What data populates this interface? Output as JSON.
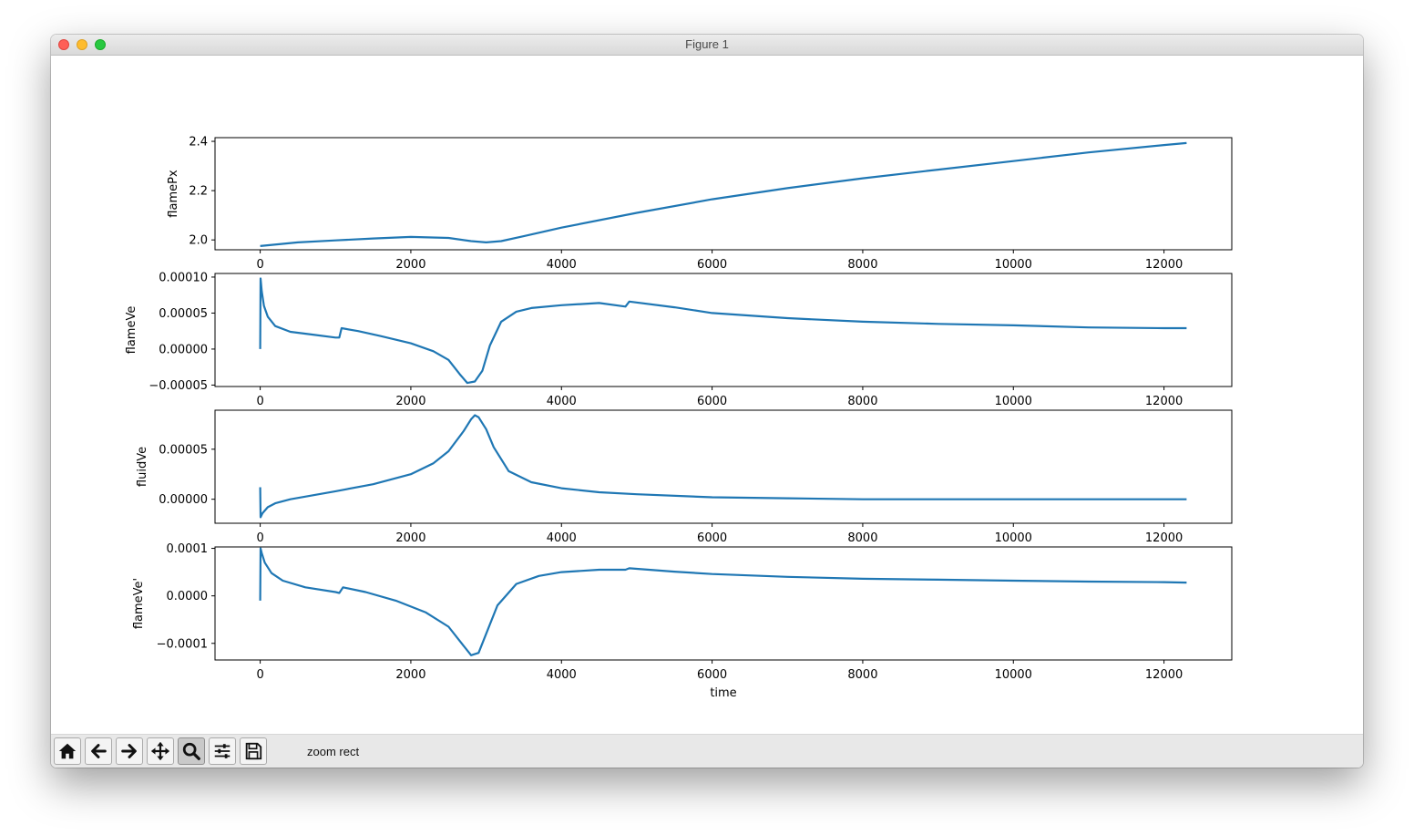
{
  "window": {
    "title": "Figure 1"
  },
  "toolbar": {
    "buttons": [
      {
        "icon": "home-icon",
        "label": "Home"
      },
      {
        "icon": "back-arrow-icon",
        "label": "Back"
      },
      {
        "icon": "forward-arrow-icon",
        "label": "Forward"
      },
      {
        "icon": "pan-move-icon",
        "label": "Pan"
      },
      {
        "icon": "zoom-magnifier-icon",
        "label": "Zoom",
        "active": true
      },
      {
        "icon": "subplots-sliders-icon",
        "label": "Configure subplots"
      },
      {
        "icon": "save-disk-icon",
        "label": "Save"
      }
    ],
    "status": "zoom rect"
  },
  "colors": {
    "line": "#1f77b4",
    "toolbar_bg": "#e8e8e8"
  },
  "chart_data": [
    {
      "type": "line",
      "ylabel": "flamePx",
      "xlabel": "",
      "xlim": [
        -600,
        12900
      ],
      "ylim": [
        1.96,
        2.415
      ],
      "xticks": [
        "0",
        "2000",
        "4000",
        "6000",
        "8000",
        "10000",
        "12000"
      ],
      "yticks": [
        "2.0",
        "2.2",
        "2.4"
      ],
      "ytick_values": [
        2.0,
        2.2,
        2.4
      ],
      "series": [
        {
          "x": [
            0,
            500,
            1000,
            1500,
            2000,
            2500,
            2800,
            3000,
            3200,
            3500,
            4000,
            5000,
            6000,
            7000,
            8000,
            9000,
            10000,
            11000,
            12000,
            12300
          ],
          "y": [
            1.975,
            1.99,
            1.998,
            2.006,
            2.012,
            2.008,
            1.995,
            1.99,
            1.995,
            2.015,
            2.05,
            2.11,
            2.165,
            2.21,
            2.25,
            2.285,
            2.32,
            2.355,
            2.385,
            2.393
          ]
        }
      ]
    },
    {
      "type": "line",
      "ylabel": "flameVe",
      "xlabel": "",
      "xlim": [
        -600,
        12900
      ],
      "ylim": [
        -5.2e-05,
        0.000105
      ],
      "xticks": [
        "0",
        "2000",
        "4000",
        "6000",
        "8000",
        "10000",
        "12000"
      ],
      "yticks": [
        "0.00010",
        "0.00005",
        "0.00000",
        "−0.00005"
      ],
      "ytick_values": [
        0.0001,
        5e-05,
        0.0,
        -5e-05
      ],
      "series": [
        {
          "x": [
            0,
            5,
            20,
            50,
            100,
            200,
            400,
            700,
            1000,
            1050,
            1080,
            1300,
            1600,
            2000,
            2300,
            2500,
            2650,
            2750,
            2850,
            2950,
            3050,
            3200,
            3400,
            3600,
            4000,
            4500,
            4850,
            4900,
            5500,
            6000,
            7000,
            8000,
            9000,
            10000,
            11000,
            12000,
            12300
          ],
          "y": [
            0.0,
            9.8e-05,
            8e-05,
            6e-05,
            4.5e-05,
            3.2e-05,
            2.4e-05,
            2e-05,
            1.6e-05,
            1.6e-05,
            2.9e-05,
            2.5e-05,
            1.8e-05,
            8e-06,
            -3e-06,
            -1.5e-05,
            -3.5e-05,
            -4.7e-05,
            -4.5e-05,
            -3e-05,
            5e-06,
            3.8e-05,
            5.2e-05,
            5.7e-05,
            6.1e-05,
            6.4e-05,
            5.9e-05,
            6.6e-05,
            5.8e-05,
            5e-05,
            4.3e-05,
            3.8e-05,
            3.5e-05,
            3.3e-05,
            3e-05,
            2.9e-05,
            2.9e-05
          ]
        }
      ]
    },
    {
      "type": "line",
      "ylabel": "fluidVe",
      "xlabel": "",
      "xlim": [
        -600,
        12900
      ],
      "ylim": [
        -2.4e-05,
        8.9e-05
      ],
      "xticks": [
        "0",
        "2000",
        "4000",
        "6000",
        "8000",
        "10000",
        "12000"
      ],
      "yticks": [
        "0.00005",
        "0.00000"
      ],
      "ytick_values": [
        5e-05,
        0.0
      ],
      "series": [
        {
          "x": [
            0,
            5,
            30,
            100,
            200,
            400,
            700,
            1000,
            1500,
            2000,
            2300,
            2500,
            2700,
            2800,
            2850,
            2900,
            3000,
            3100,
            3300,
            3600,
            4000,
            4500,
            5000,
            6000,
            7000,
            8000,
            9000,
            10000,
            11000,
            12000,
            12300
          ],
          "y": [
            1.2e-05,
            -1.8e-05,
            -1.4e-05,
            -8e-06,
            -4e-06,
            0.0,
            4e-06,
            8e-06,
            1.5e-05,
            2.5e-05,
            3.6e-05,
            4.8e-05,
            6.8e-05,
            8e-05,
            8.4e-05,
            8.2e-05,
            7e-05,
            5.2e-05,
            2.8e-05,
            1.7e-05,
            1.1e-05,
            7e-06,
            5e-06,
            2e-06,
            1e-06,
            0.0,
            0.0,
            0.0,
            0.0,
            0.0,
            0.0
          ]
        }
      ]
    },
    {
      "type": "line",
      "ylabel": "flameVe'",
      "xlabel": "time",
      "xlim": [
        -600,
        12900
      ],
      "ylim": [
        -0.000135,
        0.000103
      ],
      "xticks": [
        "0",
        "2000",
        "4000",
        "6000",
        "8000",
        "10000",
        "12000"
      ],
      "yticks": [
        "0.0001",
        "0.0000",
        "−0.0001"
      ],
      "ytick_values": [
        0.0001,
        0.0,
        -0.0001
      ],
      "series": [
        {
          "x": [
            0,
            5,
            20,
            60,
            150,
            300,
            600,
            1000,
            1050,
            1100,
            1400,
            1800,
            2200,
            2500,
            2700,
            2800,
            2900,
            3000,
            3150,
            3400,
            3700,
            4000,
            4500,
            4850,
            4900,
            5500,
            6000,
            7000,
            8000,
            9000,
            10000,
            11000,
            12000,
            12300
          ],
          "y": [
            -1e-05,
            0.0001,
            9e-05,
            7e-05,
            4.8e-05,
            3.2e-05,
            1.8e-05,
            8e-06,
            6e-06,
            1.8e-05,
            8e-06,
            -1e-05,
            -3.5e-05,
            -6.5e-05,
            -0.000105,
            -0.000125,
            -0.00012,
            -8e-05,
            -2e-05,
            2.5e-05,
            4.2e-05,
            5e-05,
            5.5e-05,
            5.5e-05,
            5.8e-05,
            5.1e-05,
            4.6e-05,
            4e-05,
            3.6e-05,
            3.4e-05,
            3.2e-05,
            3e-05,
            2.9e-05,
            2.8e-05
          ]
        }
      ]
    }
  ]
}
